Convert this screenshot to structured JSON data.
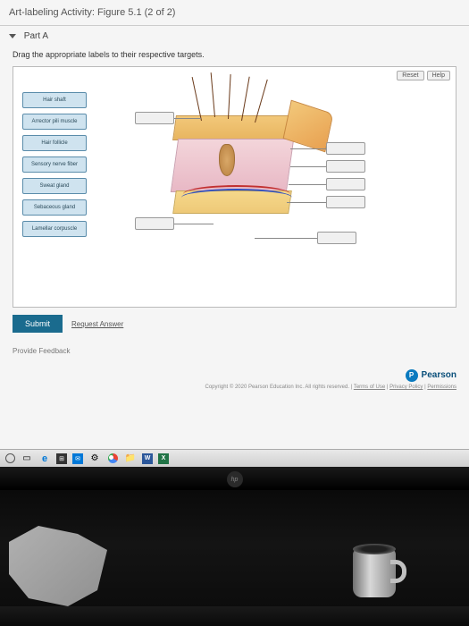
{
  "page": {
    "title": "Art-labeling Activity: Figure 5.1 (2 of 2)",
    "part_label": "Part A",
    "instruction": "Drag the appropriate labels to their respective targets."
  },
  "buttons": {
    "reset": "Reset",
    "help": "Help",
    "submit": "Submit",
    "request_answer": "Request Answer",
    "provide_feedback": "Provide Feedback"
  },
  "labels": [
    "Hair shaft",
    "Arrector pili muscle",
    "Hair follicle",
    "Sensory nerve fiber",
    "Sweat gland",
    "Sebaceous gland",
    "Lamellar corpuscle"
  ],
  "footer": {
    "brand": "Pearson",
    "p_letter": "P",
    "copyright": "Copyright © 2020 Pearson Education Inc. All rights reserved. | ",
    "link_terms": "Terms of Use",
    "link_privacy": "Privacy Policy",
    "link_permissions": "Permissions",
    "sep": " | "
  },
  "taskbar": {
    "edge": "e",
    "word": "W",
    "excel": "X",
    "store": "⊞",
    "mail": "✉"
  },
  "monitor": {
    "logo": "hp"
  },
  "colors": {
    "submit_bg": "#1a6b8e",
    "chip_bg": "#cfe3ef",
    "chip_border": "#5a8caa",
    "pearson_blue": "#0a7abf"
  }
}
